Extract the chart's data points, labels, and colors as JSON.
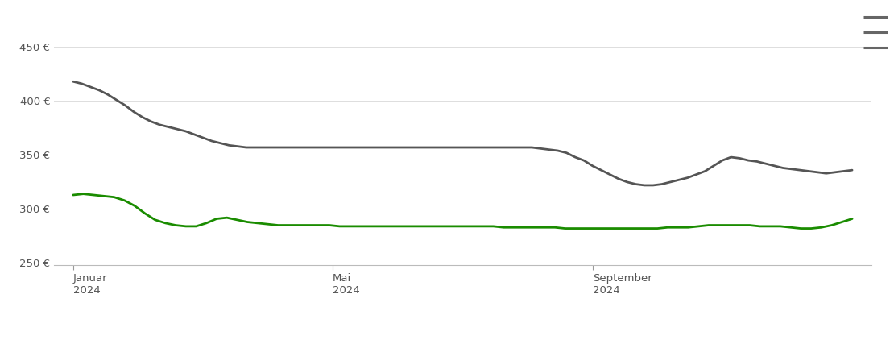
{
  "background_color": "#ffffff",
  "grid_color": "#dddddd",
  "lose_ware_color": "#1a8c00",
  "sackware_color": "#555555",
  "line_width": 2.0,
  "ylim": [
    248,
    462
  ],
  "yticks": [
    250,
    300,
    350,
    400,
    450
  ],
  "ytick_labels": [
    "250 €",
    "300 €",
    "350 €",
    "400 €",
    "450 €"
  ],
  "lose_ware": [
    313,
    314,
    313,
    312,
    311,
    308,
    303,
    296,
    290,
    287,
    285,
    284,
    284,
    287,
    291,
    292,
    290,
    288,
    287,
    286,
    285,
    285,
    285,
    285,
    285,
    285,
    284,
    284,
    284,
    284,
    284,
    284,
    284,
    284,
    284,
    284,
    284,
    284,
    284,
    284,
    284,
    284,
    283,
    283,
    283,
    283,
    283,
    283,
    282,
    282,
    282,
    282,
    282,
    282,
    282,
    282,
    282,
    282,
    283,
    283,
    283,
    284,
    285,
    285,
    285,
    285,
    285,
    284,
    284,
    284,
    283,
    282,
    282,
    283,
    285,
    288,
    291
  ],
  "sackware": [
    418,
    416,
    413,
    410,
    406,
    401,
    396,
    390,
    385,
    381,
    378,
    376,
    374,
    372,
    369,
    366,
    363,
    361,
    359,
    358,
    357,
    357,
    357,
    357,
    357,
    357,
    357,
    357,
    357,
    357,
    357,
    357,
    357,
    357,
    357,
    357,
    357,
    357,
    357,
    357,
    357,
    357,
    357,
    357,
    357,
    357,
    357,
    357,
    357,
    357,
    357,
    357,
    357,
    357,
    356,
    355,
    354,
    352,
    348,
    345,
    340,
    336,
    332,
    328,
    325,
    323,
    322,
    322,
    323,
    325,
    327,
    329,
    332,
    335,
    340,
    345,
    348,
    347,
    345,
    344,
    342,
    340,
    338,
    337,
    336,
    335,
    334,
    333,
    334,
    335,
    336
  ],
  "x_tick_months": [
    0,
    4,
    8
  ],
  "x_tick_labels": [
    "Januar\n2024",
    "Mai\n2024",
    "September\n2024"
  ],
  "hamburger_color": "#666666"
}
